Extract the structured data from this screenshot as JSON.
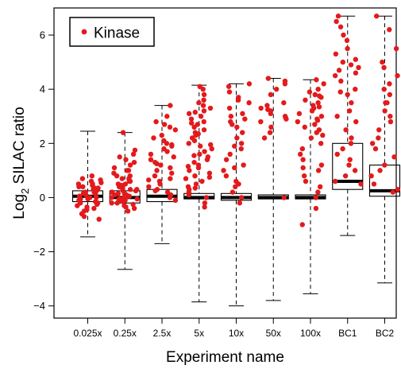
{
  "chart_data": {
    "type": "box",
    "xlabel": "Experiment name",
    "ylabel_main": "Log",
    "ylabel_sub": "2",
    "ylabel_rest": " SILAC ratio",
    "ylim": [
      -4.45,
      7.0
    ],
    "yticks": [
      -4,
      -2,
      0,
      2,
      4,
      6
    ],
    "grid": false,
    "legend": {
      "label": "Kinase",
      "placement": "top-left",
      "marker_color": "#e31a1c"
    },
    "categories": [
      "0.025x",
      "0.25x",
      "2.5x",
      "5x",
      "10x",
      "50x",
      "100x",
      "BC1",
      "BC2"
    ],
    "boxes": [
      {
        "name": "0.025x",
        "whisker_low": -1.45,
        "q1": -0.15,
        "median": 0.05,
        "q3": 0.25,
        "whisker_high": 2.45
      },
      {
        "name": "0.25x",
        "whisker_low": -2.65,
        "q1": -0.2,
        "median": 0.0,
        "q3": 0.25,
        "whisker_high": 2.4
      },
      {
        "name": "2.5x",
        "whisker_low": -1.7,
        "q1": -0.15,
        "median": 0.05,
        "q3": 0.3,
        "whisker_high": 3.4
      },
      {
        "name": "5x",
        "whisker_low": -3.85,
        "q1": -0.05,
        "median": 0.0,
        "q3": 0.15,
        "whisker_high": 4.15
      },
      {
        "name": "10x",
        "whisker_low": -4.0,
        "q1": -0.1,
        "median": 0.0,
        "q3": 0.15,
        "whisker_high": 4.2
      },
      {
        "name": "50x",
        "whisker_low": -3.8,
        "q1": -0.05,
        "median": 0.0,
        "q3": 0.1,
        "whisker_high": 4.4
      },
      {
        "name": "100x",
        "whisker_low": -3.55,
        "q1": -0.05,
        "median": 0.0,
        "q3": 0.1,
        "whisker_high": 4.35
      },
      {
        "name": "BC1",
        "whisker_low": -1.4,
        "q1": 0.3,
        "median": 0.6,
        "q3": 2.0,
        "whisker_high": 6.7
      },
      {
        "name": "BC2",
        "whisker_low": -3.15,
        "q1": 0.05,
        "median": 0.25,
        "q3": 1.2,
        "whisker_high": 6.7
      }
    ],
    "kinase_points": {
      "0.025x": [
        0.8,
        0.7,
        0.6,
        0.55,
        0.5,
        0.45,
        0.4,
        0.35,
        0.3,
        0.25,
        0.2,
        0.15,
        0.1,
        0.05,
        0.0,
        -0.05,
        -0.1,
        -0.15,
        -0.2,
        -0.25,
        -0.3,
        -0.35,
        -0.4,
        -0.5,
        -0.6,
        -0.7,
        -0.8,
        0.3,
        0.2,
        0.1,
        0.0,
        -0.1,
        0.5,
        0.4,
        0.15,
        -0.05,
        0.65,
        -0.45,
        0.35,
        -0.2
      ],
      "0.25x": [
        2.4,
        1.75,
        1.6,
        1.5,
        1.4,
        1.3,
        1.2,
        1.1,
        1.0,
        0.9,
        0.8,
        0.7,
        0.6,
        0.5,
        0.45,
        0.4,
        0.35,
        0.3,
        0.25,
        0.2,
        0.15,
        0.1,
        0.05,
        0.0,
        -0.05,
        -0.1,
        -0.15,
        -0.2,
        -0.25,
        -0.3,
        -0.35,
        -0.4,
        -0.5,
        0.3,
        0.2,
        0.1,
        0.0,
        -0.1,
        0.6,
        0.4,
        0.15,
        -0.05,
        0.8,
        0.5,
        0.25,
        0.05,
        -0.2,
        1.0,
        0.7,
        0.35
      ],
      "2.5x": [
        3.4,
        3.0,
        2.8,
        2.6,
        2.5,
        2.3,
        2.2,
        2.1,
        2.0,
        1.9,
        1.8,
        1.7,
        1.6,
        1.5,
        1.4,
        1.3,
        1.2,
        1.1,
        1.0,
        0.9,
        0.8,
        0.7,
        0.6,
        0.5,
        0.4,
        0.3,
        0.2,
        0.1,
        0.0,
        -0.1,
        2.7,
        1.95,
        1.25,
        0.65,
        0.25
      ],
      "5x": [
        4.1,
        4.0,
        3.8,
        3.6,
        3.5,
        3.4,
        3.3,
        3.2,
        3.1,
        3.0,
        2.9,
        2.8,
        2.7,
        2.6,
        2.5,
        2.4,
        2.3,
        2.2,
        2.1,
        2.0,
        1.9,
        1.8,
        1.7,
        1.6,
        1.5,
        1.4,
        1.3,
        1.2,
        1.1,
        1.0,
        0.9,
        0.8,
        0.7,
        0.6,
        0.5,
        0.4,
        0.3,
        0.2,
        0.1,
        0.0,
        -0.2,
        -0.35,
        3.15,
        2.75,
        2.35,
        1.95,
        1.55,
        1.15,
        0.75,
        0.35
      ],
      "10x": [
        4.2,
        4.1,
        3.9,
        3.7,
        3.5,
        3.3,
        3.1,
        3.0,
        2.9,
        2.8,
        2.6,
        2.4,
        2.2,
        2.0,
        1.8,
        1.6,
        1.4,
        1.2,
        1.0,
        0.8,
        0.6,
        0.4,
        0.2,
        0.0,
        -0.2,
        3.6,
        2.7,
        1.9,
        1.1,
        0.5
      ],
      "50x": [
        4.4,
        4.3,
        4.2,
        4.0,
        3.8,
        3.5,
        3.4,
        3.3,
        3.2,
        3.1,
        3.0,
        2.9,
        2.8,
        2.6,
        2.4,
        2.2,
        0.0,
        3.25,
        2.95
      ],
      "100x": [
        4.35,
        4.2,
        4.0,
        3.9,
        3.8,
        3.7,
        3.6,
        3.5,
        3.4,
        3.3,
        3.2,
        3.1,
        3.0,
        2.9,
        2.8,
        2.7,
        2.6,
        2.5,
        2.4,
        2.3,
        2.2,
        2.0,
        1.8,
        1.6,
        1.4,
        1.2,
        1.0,
        0.8,
        0.6,
        0.4,
        0.2,
        0.0,
        -0.4,
        -1.0,
        3.75,
        3.35,
        2.85,
        1.1
      ],
      "BC1": [
        6.7,
        6.5,
        6.3,
        6.0,
        5.8,
        5.5,
        5.3,
        5.0,
        4.9,
        4.8,
        4.7,
        4.5,
        4.3,
        4.0,
        3.8,
        3.5,
        3.2,
        3.0,
        2.8,
        2.5,
        2.2,
        2.0,
        1.8,
        1.6,
        1.4,
        1.2,
        1.0,
        0.8,
        0.6,
        0.5,
        5.1,
        4.6,
        3.9
      ],
      "BC2": [
        6.7,
        6.2,
        5.5,
        5.0,
        4.8,
        4.5,
        4.2,
        4.0,
        3.8,
        3.5,
        3.2,
        3.0,
        2.8,
        2.5,
        2.2,
        2.0,
        1.8,
        1.5,
        1.2,
        1.0,
        0.8,
        0.5,
        0.3,
        0.2,
        3.5
      ]
    }
  }
}
